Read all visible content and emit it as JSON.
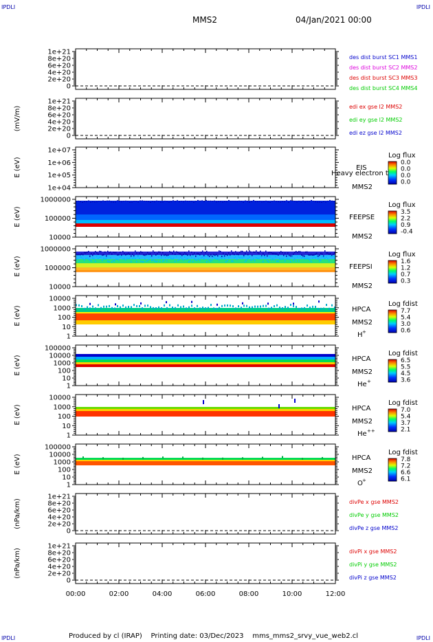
{
  "corners": {
    "tl": "IPDLI",
    "tr": "IPDLI",
    "bl": "IPDLI",
    "br": "IPDLI"
  },
  "header": {
    "mission": "MMS2",
    "date": "04/Jan/2021 00:00"
  },
  "footer": {
    "text": "Produced by cl (IRAP)    Printing date: 03/Dec/2023    mms_mms2_srvy_vue_web2.cl"
  },
  "x_ticks": [
    "00:00",
    "02:00",
    "04:00",
    "06:00",
    "08:00",
    "10:00",
    "12:00"
  ],
  "colors": {
    "red": "#dd0000",
    "magenta": "#dd00dd",
    "green": "#00cc00",
    "blue": "#0000cc"
  },
  "chart_data": [
    {
      "type": "line",
      "ylabel": "",
      "yticks": [
        "0",
        "2e+20",
        "4e+20",
        "6e+20",
        "8e+20",
        "1e+21"
      ],
      "legend": [
        {
          "text": "des dist burst SC1 MMS1",
          "color": "#0000cc"
        },
        {
          "text": "des dist burst SC2 MMS2",
          "color": "#dd00dd"
        },
        {
          "text": "des dist burst SC3 MMS3",
          "color": "#dd0000"
        },
        {
          "text": "des dist burst SC4 MMS4",
          "color": "#00cc00"
        }
      ]
    },
    {
      "type": "line",
      "ylabel": "(mV/m)",
      "yticks": [
        "0",
        "2e+20",
        "4e+20",
        "6e+20",
        "8e+20",
        "1e+21"
      ],
      "legend": [
        {
          "text": "edi ex gse l2 MMS2",
          "color": "#dd0000"
        },
        {
          "text": "edi ey gse l2 MMS2",
          "color": "#00cc00"
        },
        {
          "text": "edi ez gse l2 MMS2",
          "color": "#0000cc"
        }
      ]
    },
    {
      "type": "heatmap",
      "ylabel": "E (eV)",
      "yticks": [
        "1e+04",
        "1e+05",
        "1e+06",
        "1e+07"
      ],
      "inst": [
        "EIS",
        "MMS2"
      ],
      "overlay": "Heavy electron to",
      "cbar_title": "Log flux",
      "cbar_ticks": [
        "0.0",
        "0.0",
        "0.0",
        "0.0"
      ]
    },
    {
      "type": "heatmap",
      "ylabel": "E (eV)",
      "yticks": [
        "10000",
        "100000",
        "1000000"
      ],
      "inst": [
        "FEEPSE",
        "MMS2"
      ],
      "cbar_title": "Log flux",
      "cbar_ticks": [
        "3.5",
        "2.2",
        "0.9",
        "-0.4"
      ]
    },
    {
      "type": "heatmap",
      "ylabel": "E (eV)",
      "yticks": [
        "10000",
        "100000",
        "1000000"
      ],
      "inst": [
        "FEEPSI",
        "MMS2"
      ],
      "cbar_title": "Log flux",
      "cbar_ticks": [
        "1.6",
        "1.2",
        "0.7",
        "0.3"
      ]
    },
    {
      "type": "heatmap",
      "ylabel": "E (eV)",
      "yticks": [
        "1",
        "10",
        "100",
        "1000",
        "10000"
      ],
      "inst": [
        "HPCA",
        "MMS2"
      ],
      "species": "H",
      "species_sup": "+",
      "cbar_title": "Log fdist",
      "cbar_ticks": [
        "7.7",
        "5.4",
        "3.0",
        "0.6"
      ]
    },
    {
      "type": "heatmap",
      "ylabel": "E (eV)",
      "yticks": [
        "1",
        "10",
        "100",
        "1000",
        "10000",
        "100000"
      ],
      "inst": [
        "HPCA",
        "MMS2"
      ],
      "species": "He",
      "species_sup": "+",
      "cbar_title": "Log fdist",
      "cbar_ticks": [
        "6.5",
        "5.5",
        "4.5",
        "3.6"
      ]
    },
    {
      "type": "heatmap",
      "ylabel": "E (eV)",
      "yticks": [
        "1",
        "10",
        "100",
        "1000",
        "10000"
      ],
      "inst": [
        "HPCA",
        "MMS2"
      ],
      "species": "He",
      "species_sup": "++",
      "cbar_title": "Log fdist",
      "cbar_ticks": [
        "7.0",
        "5.4",
        "3.7",
        "2.1"
      ]
    },
    {
      "type": "heatmap",
      "ylabel": "E (eV)",
      "yticks": [
        "1",
        "10",
        "100",
        "1000",
        "10000",
        "100000"
      ],
      "inst": [
        "HPCA",
        "MMS2"
      ],
      "species": "O",
      "species_sup": "+",
      "cbar_title": "Log fdist",
      "cbar_ticks": [
        "7.8",
        "7.2",
        "6.6",
        "6.1"
      ]
    },
    {
      "type": "line",
      "ylabel": "(nPa/km)",
      "yticks": [
        "0",
        "2e+20",
        "4e+20",
        "6e+20",
        "8e+20",
        "1e+21"
      ],
      "legend": [
        {
          "text": "divPe x gse MMS2",
          "color": "#dd0000"
        },
        {
          "text": "divPe y gse MMS2",
          "color": "#00cc00"
        },
        {
          "text": "divPe z gse MMS2",
          "color": "#0000cc"
        }
      ]
    },
    {
      "type": "line",
      "ylabel": "(nPa/km)",
      "yticks": [
        "0",
        "2e+20",
        "4e+20",
        "6e+20",
        "8e+20",
        "1e+21"
      ],
      "legend": [
        {
          "text": "divPi x gse MMS2",
          "color": "#dd0000"
        },
        {
          "text": "divPi y gse MMS2",
          "color": "#00cc00"
        },
        {
          "text": "divPi z gse MMS2",
          "color": "#0000cc"
        }
      ]
    }
  ]
}
